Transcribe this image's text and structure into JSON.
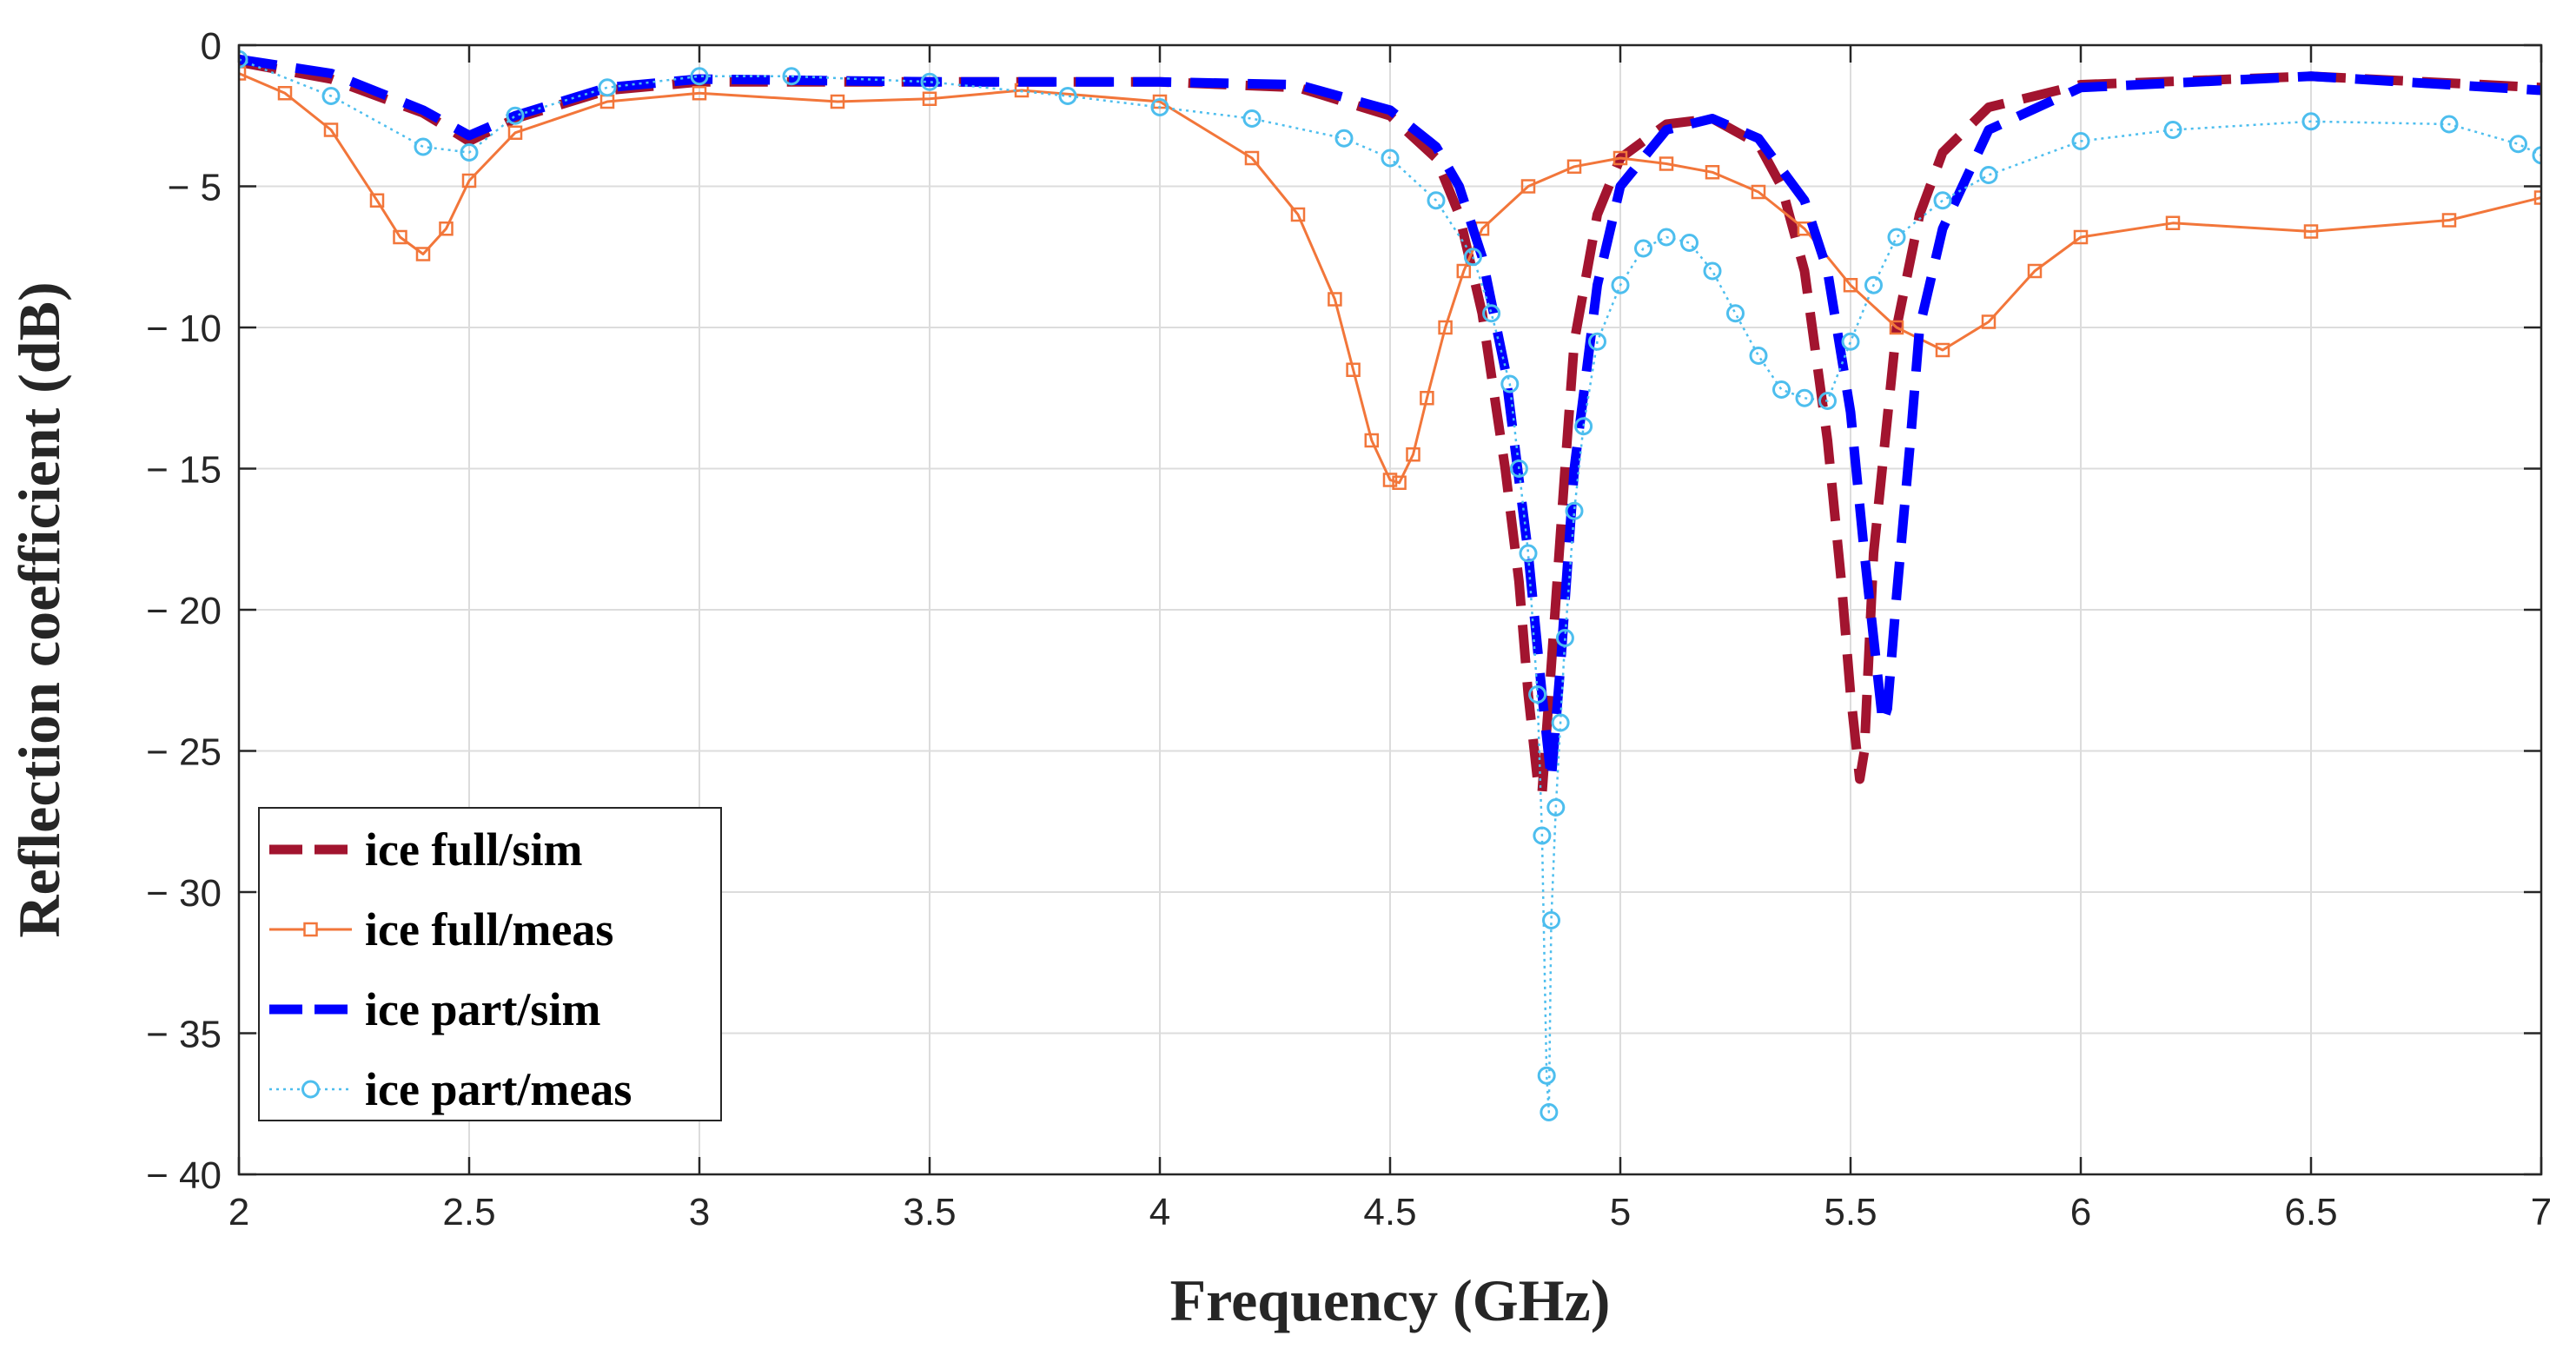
{
  "chart_data": {
    "type": "line",
    "xlabel": "Frequency (GHz)",
    "ylabel": "Reflection coefficient (dB)",
    "xlim": [
      2,
      7
    ],
    "ylim": [
      -40,
      0
    ],
    "xticks": [
      2,
      2.5,
      3,
      3.5,
      4,
      4.5,
      5,
      5.5,
      6,
      6.5,
      7
    ],
    "xtick_labels": [
      "2",
      "2.5",
      "3",
      "3.5",
      "4",
      "4.5",
      "5",
      "5.5",
      "6",
      "6.5",
      "7"
    ],
    "yticks": [
      0,
      -5,
      -10,
      -15,
      -20,
      -25,
      -30,
      -35,
      -40
    ],
    "ytick_labels": [
      "0",
      "− 5",
      "− 10",
      "− 15",
      "− 20",
      "− 25",
      "− 30",
      "− 35",
      "− 40"
    ],
    "grid": true,
    "legend_position": "bottom-left",
    "series": [
      {
        "name": "ice full/sim",
        "color": "#a2142f",
        "style": "dashed-thick",
        "marker": "none",
        "x": [
          2.0,
          2.2,
          2.4,
          2.5,
          2.6,
          2.8,
          3.0,
          3.5,
          4.0,
          4.3,
          4.5,
          4.6,
          4.65,
          4.7,
          4.75,
          4.78,
          4.8,
          4.82,
          4.83,
          4.85,
          4.88,
          4.9,
          4.95,
          5.0,
          5.1,
          5.2,
          5.3,
          5.35,
          5.4,
          5.45,
          5.48,
          5.5,
          5.52,
          5.53,
          5.55,
          5.6,
          5.65,
          5.7,
          5.8,
          6.0,
          6.5,
          7.0
        ],
        "y": [
          -0.6,
          -1.2,
          -2.4,
          -3.4,
          -2.6,
          -1.6,
          -1.3,
          -1.3,
          -1.3,
          -1.5,
          -2.5,
          -4.0,
          -6.0,
          -9.5,
          -15.0,
          -19.0,
          -23.0,
          -26.0,
          -26.5,
          -22.0,
          -15.0,
          -10.5,
          -6.0,
          -4.0,
          -2.8,
          -2.6,
          -3.5,
          -5.0,
          -8.0,
          -14.0,
          -19.0,
          -23.0,
          -26.0,
          -25.0,
          -18.0,
          -10.0,
          -6.0,
          -3.8,
          -2.2,
          -1.4,
          -1.1,
          -1.5
        ]
      },
      {
        "name": "ice full/meas",
        "color": "#f2763a",
        "style": "solid",
        "marker": "square",
        "x": [
          2.0,
          2.1,
          2.2,
          2.3,
          2.35,
          2.4,
          2.45,
          2.5,
          2.6,
          2.8,
          3.0,
          3.3,
          3.5,
          3.7,
          4.0,
          4.2,
          4.3,
          4.38,
          4.42,
          4.46,
          4.5,
          4.52,
          4.55,
          4.58,
          4.62,
          4.66,
          4.7,
          4.8,
          4.9,
          5.0,
          5.1,
          5.2,
          5.3,
          5.4,
          5.5,
          5.6,
          5.7,
          5.8,
          5.9,
          6.0,
          6.2,
          6.5,
          6.8,
          7.0
        ],
        "y": [
          -1.0,
          -1.7,
          -3.0,
          -5.5,
          -6.8,
          -7.4,
          -6.5,
          -4.8,
          -3.1,
          -2.0,
          -1.7,
          -2.0,
          -1.9,
          -1.6,
          -2.0,
          -4.0,
          -6.0,
          -9.0,
          -11.5,
          -14.0,
          -15.4,
          -15.5,
          -14.5,
          -12.5,
          -10.0,
          -8.0,
          -6.5,
          -5.0,
          -4.3,
          -4.0,
          -4.2,
          -4.5,
          -5.2,
          -6.5,
          -8.5,
          -10.0,
          -10.8,
          -9.8,
          -8.0,
          -6.8,
          -6.3,
          -6.6,
          -6.2,
          -5.4
        ]
      },
      {
        "name": "ice part/sim",
        "color": "#0000ff",
        "style": "dashed-thick",
        "marker": "none",
        "x": [
          2.0,
          2.2,
          2.4,
          2.5,
          2.6,
          2.8,
          3.0,
          3.5,
          4.0,
          4.3,
          4.5,
          4.6,
          4.65,
          4.7,
          4.75,
          4.8,
          4.83,
          4.85,
          4.87,
          4.9,
          4.95,
          5.0,
          5.1,
          5.2,
          5.3,
          5.4,
          5.45,
          5.5,
          5.53,
          5.55,
          5.57,
          5.58,
          5.6,
          5.63,
          5.65,
          5.7,
          5.8,
          6.0,
          6.5,
          7.0
        ],
        "y": [
          -0.5,
          -1.0,
          -2.3,
          -3.2,
          -2.5,
          -1.5,
          -1.2,
          -1.3,
          -1.3,
          -1.4,
          -2.3,
          -3.6,
          -5.0,
          -7.5,
          -11.5,
          -18.0,
          -23.0,
          -26.0,
          -22.0,
          -15.0,
          -8.5,
          -5.0,
          -3.0,
          -2.6,
          -3.3,
          -5.5,
          -8.0,
          -13.0,
          -18.0,
          -21.0,
          -24.0,
          -23.5,
          -19.5,
          -14.0,
          -10.0,
          -6.5,
          -3.0,
          -1.5,
          -1.1,
          -1.6
        ]
      },
      {
        "name": "ice part/meas",
        "color": "#4dbeee",
        "style": "dotted",
        "marker": "circle",
        "x": [
          2.0,
          2.2,
          2.4,
          2.5,
          2.6,
          2.8,
          3.0,
          3.2,
          3.5,
          3.8,
          4.0,
          4.2,
          4.4,
          4.5,
          4.6,
          4.68,
          4.72,
          4.76,
          4.78,
          4.8,
          4.82,
          4.83,
          4.84,
          4.845,
          4.85,
          4.86,
          4.87,
          4.88,
          4.9,
          4.92,
          4.95,
          5.0,
          5.05,
          5.1,
          5.15,
          5.2,
          5.25,
          5.3,
          5.35,
          5.4,
          5.45,
          5.5,
          5.55,
          5.6,
          5.7,
          5.8,
          6.0,
          6.2,
          6.5,
          6.8,
          6.95,
          7.0
        ],
        "y": [
          -0.5,
          -1.8,
          -3.6,
          -3.8,
          -2.5,
          -1.5,
          -1.1,
          -1.1,
          -1.3,
          -1.8,
          -2.2,
          -2.6,
          -3.3,
          -4.0,
          -5.5,
          -7.5,
          -9.5,
          -12.0,
          -15.0,
          -18.0,
          -23.0,
          -28.0,
          -36.5,
          -37.8,
          -31.0,
          -27.0,
          -24.0,
          -21.0,
          -16.5,
          -13.5,
          -10.5,
          -8.5,
          -7.2,
          -6.8,
          -7.0,
          -8.0,
          -9.5,
          -11.0,
          -12.2,
          -12.5,
          -12.6,
          -10.5,
          -8.5,
          -6.8,
          -5.5,
          -4.6,
          -3.4,
          -3.0,
          -2.7,
          -2.8,
          -3.5,
          -3.9
        ]
      }
    ]
  }
}
